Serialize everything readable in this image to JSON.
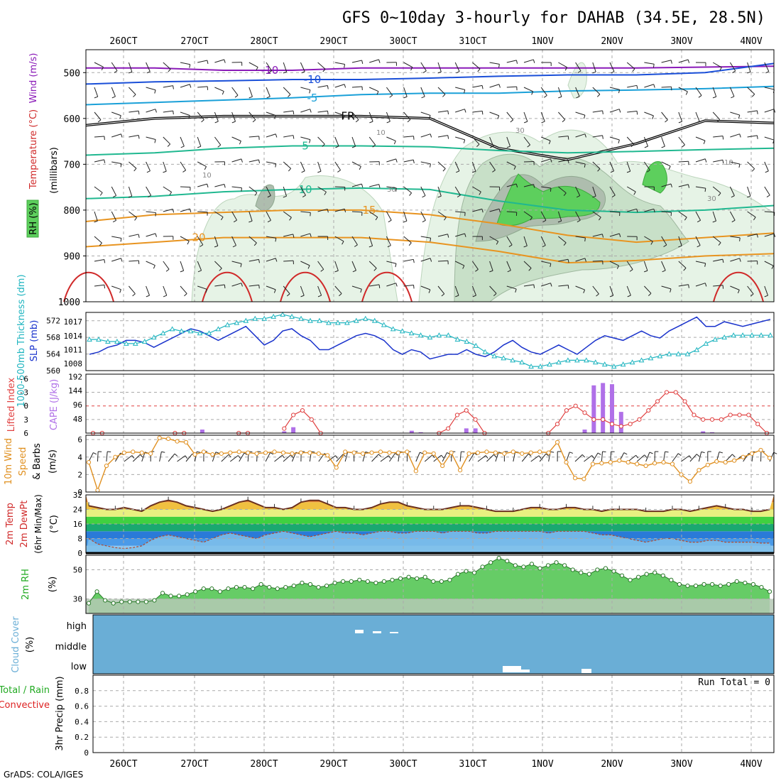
{
  "page": {
    "title": "GFS 0~10day 3-hourly for DAHAB (34.5E, 28.5N)",
    "credit": "GrADS: COLA/IGES",
    "run_total": "Run Total = 0"
  },
  "colors": {
    "temp_warm": "#d02a2a",
    "temp_mid": "#e89420",
    "temp_green": "#20b890",
    "temp_cyan": "#1aa0d8",
    "temp_blue": "#1a4fd8",
    "temp_purple": "#8a1ab8",
    "freezing": "#000000",
    "rh_light": "#e6f3e6",
    "rh_mid": "#c8e0c8",
    "rh_dark": "#aebdae",
    "rh_green": "#5dcf5d",
    "slp": "#1a33cc",
    "thickness": "#20b5c0",
    "lifted_index": "#e04040",
    "cape": "#b070e8",
    "wind10": "#e09020",
    "rh2m_fill": "#66cc66",
    "cloud_fill": "#6aaed6"
  },
  "chart_data": [
    {
      "type": "contour",
      "panel": "upper-air",
      "ylabel_parts": [
        "RH (%)",
        "Temperature (°C)",
        "Wind (m/s)"
      ],
      "ylabel_units": "(millibars)",
      "yticks": [
        500,
        600,
        700,
        800,
        900,
        1000
      ],
      "ylim": [
        450,
        1000
      ],
      "x_dates": [
        "26OCT",
        "27OCT",
        "28OCT",
        "29OCT",
        "30OCT",
        "31OCT",
        "1NOV",
        "2NOV",
        "3NOV",
        "4NOV"
      ],
      "temperature_contours": [
        {
          "label": "-10",
          "pressure": [
            490,
            490,
            495,
            495,
            490,
            490,
            490,
            490,
            490,
            488,
            486
          ],
          "color_key": "temp_purple"
        },
        {
          "label": "-10",
          "pressure": [
            525,
            520,
            518,
            515,
            515,
            512,
            508,
            505,
            505,
            500,
            480
          ],
          "color_key": "temp_blue"
        },
        {
          "label": "-5",
          "pressure": [
            570,
            565,
            560,
            555,
            548,
            545,
            545,
            540,
            538,
            535,
            530
          ],
          "color_key": "temp_cyan"
        },
        {
          "label": "FR",
          "pressure": [
            615,
            600,
            595,
            595,
            595,
            600,
            665,
            690,
            655,
            605,
            610
          ],
          "color_key": "freezing"
        },
        {
          "label": "5",
          "pressure": [
            680,
            675,
            665,
            660,
            660,
            662,
            670,
            675,
            672,
            668,
            665
          ],
          "color_key": "temp_green"
        },
        {
          "label": "10",
          "pressure": [
            775,
            770,
            760,
            755,
            752,
            755,
            780,
            800,
            805,
            800,
            790
          ],
          "color_key": "temp_green"
        },
        {
          "label": "15",
          "pressure": [
            825,
            810,
            805,
            800,
            800,
            810,
            830,
            855,
            870,
            860,
            850
          ],
          "color_key": "temp_mid"
        },
        {
          "label": "20",
          "pressure": [
            880,
            870,
            860,
            860,
            860,
            870,
            890,
            915,
            910,
            900,
            895
          ],
          "color_key": "temp_mid"
        }
      ],
      "rh_labels": [
        "10",
        "10",
        "30",
        "30",
        "10",
        "30"
      ]
    },
    {
      "type": "line",
      "panel": "slp-thickness",
      "ylabel_left": "1000-500mb Thickness (dm)",
      "ylabel_right": "SLP (mb)",
      "left_ticks": [
        560,
        564,
        568,
        572
      ],
      "right_ticks": [
        1008,
        1011,
        1014,
        1017
      ],
      "series": [
        {
          "name": "SLP (mb)",
          "color_key": "slp",
          "values": [
            1010,
            1010.5,
            1011.5,
            1012,
            1013,
            1013,
            1012.5,
            1011.5,
            1012.5,
            1013.5,
            1014.5,
            1015.5,
            1015,
            1014,
            1013,
            1014,
            1015,
            1016,
            1014,
            1012,
            1013,
            1015,
            1015.5,
            1014,
            1013,
            1011,
            1011,
            1012,
            1013,
            1014,
            1014.5,
            1014,
            1013,
            1011,
            1010,
            1011,
            1010.5,
            1009,
            1009.5,
            1010,
            1010,
            1011,
            1010,
            1009.5,
            1010.5,
            1012,
            1013,
            1011.5,
            1010.5,
            1010,
            1011,
            1012,
            1011,
            1010,
            1011.5,
            1013,
            1014,
            1013.5,
            1013,
            1014,
            1015,
            1014,
            1013.5,
            1015,
            1016,
            1017,
            1018,
            1016,
            1016,
            1017,
            1016.5,
            1016,
            1016.5,
            1017,
            1017.5
          ]
        },
        {
          "name": "Thickness (dm)",
          "color_key": "thickness",
          "values": [
            567.5,
            567.5,
            567,
            567,
            566.5,
            566.5,
            567,
            568,
            569,
            570,
            569.5,
            569.5,
            569,
            569,
            570,
            571,
            571.5,
            572,
            572.5,
            572.5,
            573,
            573.5,
            573,
            572.5,
            572,
            572,
            571.5,
            571.5,
            571.5,
            572,
            572.5,
            572,
            571,
            570,
            569.5,
            569,
            568.5,
            568,
            568.5,
            568.5,
            567.5,
            567,
            566,
            564.5,
            563.5,
            563,
            562.5,
            562,
            561,
            561,
            561.5,
            562,
            562.5,
            562.5,
            562.5,
            562,
            561.5,
            561,
            561.5,
            562,
            562.5,
            563,
            563.5,
            564,
            564,
            564,
            565,
            566.5,
            567.5,
            568,
            568.5,
            568.5,
            568.5,
            568.5,
            568.5
          ]
        }
      ]
    },
    {
      "type": "bar",
      "panel": "lifted-index-cape",
      "ylabel_left": "Lifted Index",
      "ylabel_right": "CAPE (J/kg)",
      "li_ticks": [
        "-6",
        "-3",
        "0",
        "3",
        "6"
      ],
      "cape_ticks": [
        48,
        96,
        144,
        192
      ],
      "series": [
        {
          "name": "Lifted Index",
          "color_key": "lifted_index",
          "values": [
            6,
            6,
            null,
            null,
            null,
            null,
            null,
            null,
            null,
            6,
            6,
            null,
            null,
            null,
            null,
            null,
            6,
            6,
            null,
            null,
            null,
            5,
            2,
            1,
            3,
            6,
            null,
            null,
            null,
            null,
            null,
            null,
            null,
            null,
            null,
            null,
            null,
            null,
            6,
            5,
            2,
            1,
            3,
            6,
            null,
            null,
            null,
            null,
            null,
            null,
            6,
            4,
            1,
            0,
            1.5,
            3,
            3,
            4,
            4.5,
            4,
            3,
            1,
            -1,
            -3,
            -3,
            -1,
            2,
            3,
            3,
            3,
            2,
            2,
            2,
            4,
            6
          ]
        },
        {
          "name": "CAPE (J/kg)",
          "color_key": "cape",
          "values": [
            0,
            0,
            0,
            0,
            0,
            0,
            0,
            0,
            0,
            0,
            0,
            0,
            12,
            0,
            0,
            0,
            0,
            0,
            0,
            0,
            0,
            6,
            20,
            0,
            0,
            0,
            0,
            0,
            0,
            0,
            0,
            0,
            0,
            0,
            0,
            8,
            3,
            0,
            0,
            0,
            0,
            16,
            16,
            0,
            0,
            0,
            0,
            0,
            0,
            0,
            0,
            0,
            0,
            0,
            12,
            162,
            170,
            166,
            72,
            0,
            0,
            0,
            0,
            0,
            0,
            0,
            0,
            6,
            3,
            0,
            0,
            0,
            0,
            0,
            0
          ]
        }
      ]
    },
    {
      "type": "line",
      "panel": "wind10m",
      "ylabel": "10m Wind Speed & Barbs (m/s)",
      "yticks": [
        0,
        2,
        4,
        6
      ],
      "ylim": [
        0,
        6.5
      ],
      "series": [
        {
          "name": "Speed",
          "color_key": "wind10",
          "values": [
            3.4,
            0.2,
            3,
            4,
            4.5,
            4.6,
            4.5,
            4.4,
            6.2,
            6.1,
            5.8,
            5.7,
            4.3,
            4.6,
            4.3,
            4.4,
            4.5,
            4.6,
            4.5,
            4.4,
            4.5,
            4.6,
            4.5,
            4.4,
            4.5,
            4.5,
            4.4,
            4.2,
            2.8,
            4.6,
            4.5,
            4.4,
            4.5,
            4.6,
            4.5,
            4.5,
            4.6,
            2.4,
            4.5,
            4.4,
            3,
            4.5,
            2.5,
            4.4,
            4.5,
            4.6,
            4.5,
            4.4,
            4.6,
            4.4,
            4.5,
            4.6,
            4.5,
            5.7,
            3.4,
            1.6,
            1.5,
            3.2,
            3.3,
            3.4,
            3.6,
            3.4,
            3.2,
            3,
            3.3,
            3.4,
            3.2,
            2,
            1.2,
            2.5,
            3.1,
            3.5,
            3.4,
            3.6,
            4,
            4.4,
            4.8,
            3.9
          ]
        }
      ]
    },
    {
      "type": "area",
      "panel": "temp-dewpoint",
      "ylabel": "2m Temp 2m DewPt (6hr Min/Max) (°C)",
      "yticks": [
        0,
        8,
        16,
        24,
        32
      ],
      "ylim": [
        0,
        32
      ],
      "series": [
        {
          "name": "2m Temp",
          "color_key": "temp_warm",
          "values": [
            26,
            25,
            24,
            24,
            25,
            24,
            23,
            26,
            28,
            29,
            28,
            26,
            25,
            24,
            23,
            24,
            26,
            28,
            29,
            27,
            25,
            25,
            24,
            25,
            28,
            29,
            29,
            27,
            25,
            25,
            24,
            24,
            25,
            27,
            28,
            28,
            26,
            25,
            24,
            24,
            24,
            25,
            26,
            26,
            25,
            24,
            23,
            23,
            23,
            24,
            25,
            25,
            24,
            24,
            25,
            25,
            24,
            24,
            23,
            24,
            24,
            24,
            24,
            23,
            23,
            23,
            24,
            24,
            23,
            24,
            25,
            26,
            25,
            24,
            24,
            23,
            23,
            24
          ]
        },
        {
          "name": "2m DewPt",
          "color_key": "temp_warm",
          "values": [
            8,
            5,
            4,
            3,
            2.5,
            3,
            4,
            7,
            9,
            10,
            9,
            8,
            7,
            6,
            8,
            10,
            11,
            10,
            9,
            8,
            10,
            11,
            12,
            11,
            10,
            9,
            10,
            11,
            12,
            11,
            11,
            10,
            11,
            12,
            12,
            11,
            11,
            12,
            12,
            12,
            11,
            12,
            12,
            12,
            11,
            11,
            12,
            12,
            12,
            12,
            12,
            12,
            11,
            12,
            12,
            12,
            12,
            11,
            10,
            10,
            9,
            8,
            7,
            6,
            7,
            8,
            8,
            7,
            6,
            6,
            7,
            7,
            6,
            6,
            6,
            6,
            5.5,
            5.5
          ]
        }
      ]
    },
    {
      "type": "area",
      "panel": "rh2m",
      "ylabel": "2m RH (%)",
      "yticks": [
        30,
        50
      ],
      "ylim": [
        20,
        60
      ],
      "series": [
        {
          "name": "2m RH",
          "color_key": "rh2m_fill",
          "values": [
            27,
            35,
            29,
            27,
            28,
            28,
            28,
            28,
            29,
            34,
            32,
            32,
            33,
            35,
            37,
            37,
            35,
            37,
            38,
            38,
            37,
            40,
            38,
            37,
            38,
            39,
            41,
            40,
            38,
            39,
            41,
            42,
            42,
            43,
            42,
            41,
            42,
            43,
            44,
            45,
            44,
            45,
            42,
            42,
            43,
            47,
            49,
            48,
            52,
            55,
            58,
            56,
            53,
            52,
            54,
            51,
            53,
            55,
            53,
            50,
            48,
            47,
            50,
            51,
            49,
            46,
            43,
            45,
            47,
            48,
            46,
            43,
            40,
            39,
            39,
            40,
            40,
            39,
            40,
            42,
            41,
            40,
            38,
            35
          ]
        }
      ]
    },
    {
      "type": "bar",
      "panel": "cloud-cover",
      "ylabel": "Cloud Cover (%)",
      "levels": [
        "high",
        "middle",
        "low"
      ],
      "note": "nearly full coverage at all levels with small gaps"
    },
    {
      "type": "bar",
      "panel": "precip",
      "ylabel_parts": [
        "Total / Rain",
        "Convective",
        "3hr Precip (mm)"
      ],
      "yticks": [
        "0",
        "0.2",
        "0.4",
        "0.6",
        "0.8"
      ],
      "ylim": [
        0,
        1
      ],
      "values": []
    }
  ]
}
